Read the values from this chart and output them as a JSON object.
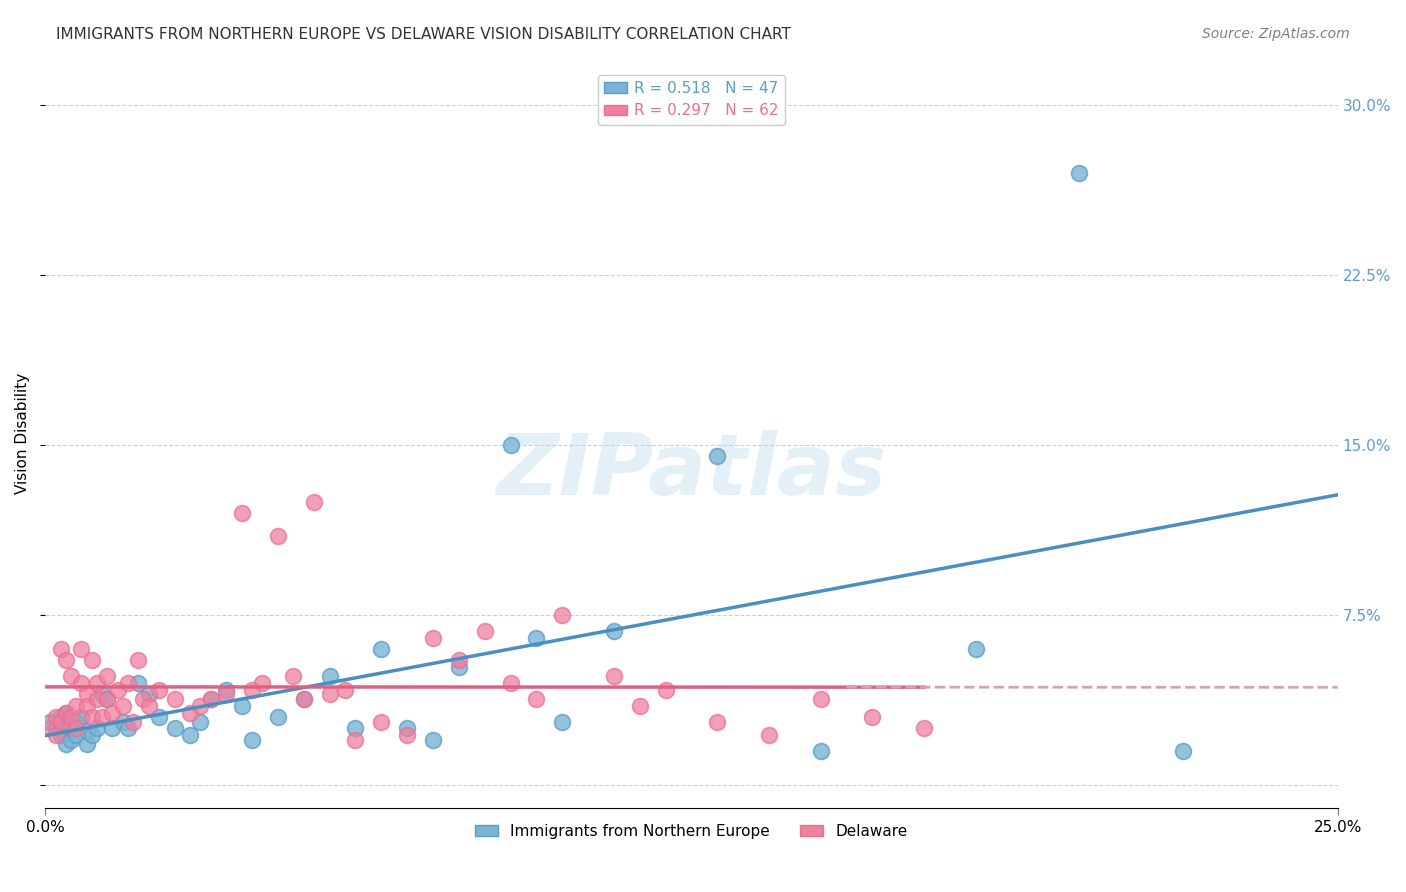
{
  "title": "IMMIGRANTS FROM NORTHERN EUROPE VS DELAWARE VISION DISABILITY CORRELATION CHART",
  "source": "Source: ZipAtlas.com",
  "ylabel": "Vision Disability",
  "xlim": [
    0.0,
    0.25
  ],
  "ylim": [
    -0.01,
    0.32
  ],
  "yticks": [
    0.0,
    0.075,
    0.15,
    0.225,
    0.3
  ],
  "ytick_labels": [
    "",
    "7.5%",
    "15.0%",
    "22.5%",
    "30.0%"
  ],
  "xtick_labels": [
    "0.0%",
    "25.0%"
  ],
  "blue_scatter_color": "#7ab3d4",
  "pink_scatter_color": "#f07fa0",
  "blue_edge_color": "#5b9ec9",
  "pink_edge_color": "#e87090",
  "blue_line_color": "#4a8fc0",
  "pink_line_color": "#e06080",
  "pink_dash_color": "#d8a0b0",
  "background_color": "#ffffff",
  "grid_color": "#d0d0d0",
  "right_tick_color": "#5b9ec9",
  "blue_scatter": [
    [
      0.001,
      0.028
    ],
    [
      0.002,
      0.025
    ],
    [
      0.003,
      0.022
    ],
    [
      0.003,
      0.03
    ],
    [
      0.004,
      0.018
    ],
    [
      0.004,
      0.032
    ],
    [
      0.005,
      0.02
    ],
    [
      0.005,
      0.025
    ],
    [
      0.006,
      0.028
    ],
    [
      0.006,
      0.022
    ],
    [
      0.007,
      0.03
    ],
    [
      0.008,
      0.018
    ],
    [
      0.008,
      0.024
    ],
    [
      0.009,
      0.022
    ],
    [
      0.01,
      0.025
    ],
    [
      0.011,
      0.04
    ],
    [
      0.012,
      0.038
    ],
    [
      0.013,
      0.025
    ],
    [
      0.015,
      0.028
    ],
    [
      0.016,
      0.025
    ],
    [
      0.018,
      0.045
    ],
    [
      0.02,
      0.04
    ],
    [
      0.022,
      0.03
    ],
    [
      0.025,
      0.025
    ],
    [
      0.028,
      0.022
    ],
    [
      0.03,
      0.028
    ],
    [
      0.032,
      0.038
    ],
    [
      0.035,
      0.042
    ],
    [
      0.038,
      0.035
    ],
    [
      0.04,
      0.02
    ],
    [
      0.045,
      0.03
    ],
    [
      0.05,
      0.038
    ],
    [
      0.055,
      0.048
    ],
    [
      0.06,
      0.025
    ],
    [
      0.065,
      0.06
    ],
    [
      0.07,
      0.025
    ],
    [
      0.075,
      0.02
    ],
    [
      0.08,
      0.052
    ],
    [
      0.09,
      0.15
    ],
    [
      0.095,
      0.065
    ],
    [
      0.1,
      0.028
    ],
    [
      0.11,
      0.068
    ],
    [
      0.13,
      0.145
    ],
    [
      0.15,
      0.015
    ],
    [
      0.18,
      0.06
    ],
    [
      0.2,
      0.27
    ],
    [
      0.22,
      0.015
    ]
  ],
  "pink_scatter": [
    [
      0.001,
      0.025
    ],
    [
      0.002,
      0.03
    ],
    [
      0.002,
      0.022
    ],
    [
      0.003,
      0.028
    ],
    [
      0.003,
      0.06
    ],
    [
      0.004,
      0.032
    ],
    [
      0.004,
      0.055
    ],
    [
      0.005,
      0.03
    ],
    [
      0.005,
      0.048
    ],
    [
      0.006,
      0.035
    ],
    [
      0.006,
      0.025
    ],
    [
      0.007,
      0.045
    ],
    [
      0.007,
      0.06
    ],
    [
      0.008,
      0.04
    ],
    [
      0.008,
      0.035
    ],
    [
      0.009,
      0.03
    ],
    [
      0.009,
      0.055
    ],
    [
      0.01,
      0.038
    ],
    [
      0.01,
      0.045
    ],
    [
      0.011,
      0.03
    ],
    [
      0.012,
      0.048
    ],
    [
      0.012,
      0.038
    ],
    [
      0.013,
      0.032
    ],
    [
      0.014,
      0.042
    ],
    [
      0.015,
      0.035
    ],
    [
      0.016,
      0.045
    ],
    [
      0.017,
      0.028
    ],
    [
      0.018,
      0.055
    ],
    [
      0.019,
      0.038
    ],
    [
      0.02,
      0.035
    ],
    [
      0.022,
      0.042
    ],
    [
      0.025,
      0.038
    ],
    [
      0.028,
      0.032
    ],
    [
      0.03,
      0.035
    ],
    [
      0.032,
      0.038
    ],
    [
      0.035,
      0.04
    ],
    [
      0.038,
      0.12
    ],
    [
      0.04,
      0.042
    ],
    [
      0.042,
      0.045
    ],
    [
      0.045,
      0.11
    ],
    [
      0.048,
      0.048
    ],
    [
      0.05,
      0.038
    ],
    [
      0.052,
      0.125
    ],
    [
      0.055,
      0.04
    ],
    [
      0.058,
      0.042
    ],
    [
      0.06,
      0.02
    ],
    [
      0.065,
      0.028
    ],
    [
      0.07,
      0.022
    ],
    [
      0.075,
      0.065
    ],
    [
      0.08,
      0.055
    ],
    [
      0.085,
      0.068
    ],
    [
      0.09,
      0.045
    ],
    [
      0.095,
      0.038
    ],
    [
      0.1,
      0.075
    ],
    [
      0.11,
      0.048
    ],
    [
      0.115,
      0.035
    ],
    [
      0.12,
      0.042
    ],
    [
      0.13,
      0.028
    ],
    [
      0.14,
      0.022
    ],
    [
      0.15,
      0.038
    ],
    [
      0.16,
      0.03
    ],
    [
      0.17,
      0.025
    ]
  ],
  "legend_blue_label": "R = 0.518   N = 47",
  "legend_pink_label": "R = 0.297   N = 62",
  "bottom_legend_blue": "Immigrants from Northern Europe",
  "bottom_legend_pink": "Delaware",
  "title_fontsize": 11,
  "axis_label_fontsize": 11,
  "tick_fontsize": 11,
  "legend_fontsize": 11,
  "source_fontsize": 10
}
